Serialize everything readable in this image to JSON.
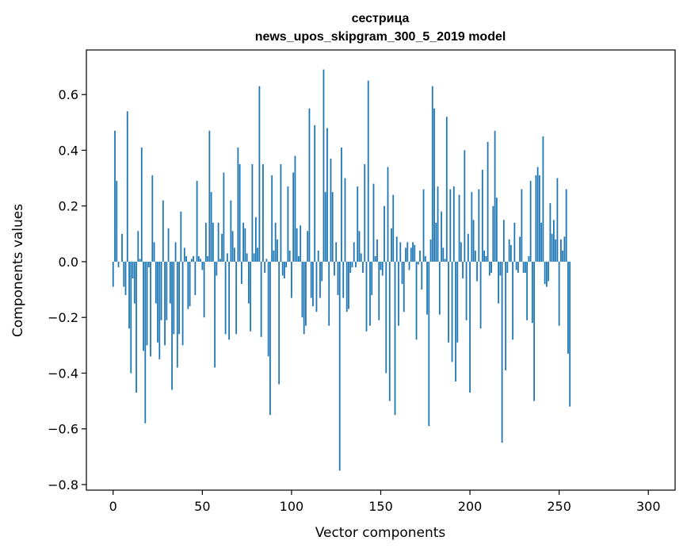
{
  "chart_data": {
    "type": "bar",
    "title_line1": "сестрица",
    "title_line2": "news_upos_skipgram_300_5_2019 model",
    "xlabel": "Vector components",
    "ylabel": "Components values",
    "xlim": [
      -15,
      315
    ],
    "ylim": [
      -0.82,
      0.76
    ],
    "xticks": [
      0,
      50,
      100,
      150,
      200,
      250,
      300
    ],
    "xtick_labels": [
      "0",
      "50",
      "100",
      "150",
      "200",
      "250",
      "300"
    ],
    "yticks": [
      -0.8,
      -0.6,
      -0.4,
      -0.2,
      0.0,
      0.2,
      0.4,
      0.6
    ],
    "ytick_labels": [
      "−0.8",
      "−0.6",
      "−0.4",
      "−0.2",
      "0.0",
      "0.2",
      "0.4",
      "0.6"
    ],
    "bar_color": "#1f77b4",
    "grid": false,
    "values": [
      -0.09,
      0.47,
      0.29,
      -0.02,
      0.0,
      0.1,
      -0.09,
      -0.12,
      0.54,
      -0.24,
      -0.4,
      -0.06,
      -0.15,
      -0.47,
      0.11,
      0.01,
      0.41,
      -0.32,
      -0.58,
      -0.3,
      -0.02,
      -0.34,
      0.31,
      0.07,
      -0.15,
      -0.29,
      -0.35,
      -0.21,
      0.22,
      -0.3,
      -0.21,
      0.12,
      -0.15,
      -0.46,
      -0.26,
      0.07,
      -0.38,
      -0.26,
      0.18,
      -0.3,
      0.05,
      0.02,
      -0.17,
      -0.16,
      0.01,
      0.02,
      -0.12,
      0.29,
      0.02,
      0.01,
      -0.03,
      -0.2,
      0.14,
      0.02,
      0.47,
      0.25,
      0.14,
      -0.38,
      -0.05,
      0.14,
      0.01,
      0.1,
      0.32,
      -0.26,
      0.03,
      -0.28,
      0.22,
      0.11,
      0.05,
      -0.26,
      0.41,
      0.35,
      -0.08,
      0.14,
      0.12,
      0.03,
      -0.15,
      -0.25,
      0.35,
      0.03,
      0.16,
      0.05,
      0.63,
      -0.27,
      0.35,
      -0.04,
      0.01,
      -0.34,
      -0.55,
      0.31,
      0.04,
      0.14,
      0.08,
      -0.44,
      0.35,
      -0.05,
      -0.06,
      -0.02,
      0.27,
      0.04,
      -0.13,
      0.32,
      0.38,
      0.12,
      0.02,
      0.13,
      -0.2,
      -0.26,
      -0.23,
      0.11,
      0.55,
      -0.13,
      -0.16,
      0.49,
      -0.18,
      0.04,
      -0.13,
      -0.07,
      0.69,
      0.25,
      0.48,
      -0.23,
      0.37,
      0.25,
      -0.05,
      0.07,
      -0.12,
      -0.75,
      0.41,
      -0.13,
      0.3,
      -0.18,
      -0.17,
      -0.04,
      -0.02,
      0.07,
      -0.02,
      0.27,
      0.11,
      0.03,
      -0.04,
      0.35,
      -0.25,
      0.65,
      -0.23,
      -0.12,
      0.28,
      0.02,
      0.08,
      -0.21,
      -0.03,
      -0.05,
      0.2,
      -0.4,
      0.34,
      -0.5,
      0.12,
      0.24,
      -0.55,
      0.09,
      -0.23,
      0.07,
      -0.08,
      -0.18,
      0.05,
      0.07,
      -0.03,
      0.05,
      0.07,
      0.06,
      -0.28,
      -0.01,
      0.04,
      -0.1,
      0.26,
      0.02,
      -0.19,
      -0.59,
      0.08,
      0.63,
      0.55,
      0.14,
      0.27,
      -0.19,
      0.18,
      0.05,
      0.01,
      0.52,
      -0.29,
      0.26,
      -0.36,
      0.27,
      -0.43,
      -0.29,
      0.24,
      0.07,
      -0.06,
      0.4,
      -0.21,
      0.1,
      -0.47,
      0.25,
      0.15,
      0.04,
      -0.07,
      0.26,
      -0.24,
      0.33,
      0.04,
      0.02,
      0.43,
      -0.05,
      -0.04,
      0.2,
      0.47,
      0.23,
      -0.15,
      -0.05,
      -0.65,
      0.15,
      -0.39,
      -0.04,
      0.08,
      0.06,
      -0.28,
      0.14,
      -0.03,
      -0.04,
      0.09,
      0.26,
      -0.04,
      -0.04,
      -0.21,
      0.02,
      0.29,
      -0.22,
      -0.5,
      0.31,
      0.34,
      0.31,
      0.14,
      0.45,
      -0.08,
      -0.09,
      -0.07,
      0.21,
      0.1,
      0.15,
      0.08,
      0.3,
      -0.23,
      0.08,
      0.04,
      0.09,
      0.26,
      -0.33,
      -0.52
    ]
  }
}
